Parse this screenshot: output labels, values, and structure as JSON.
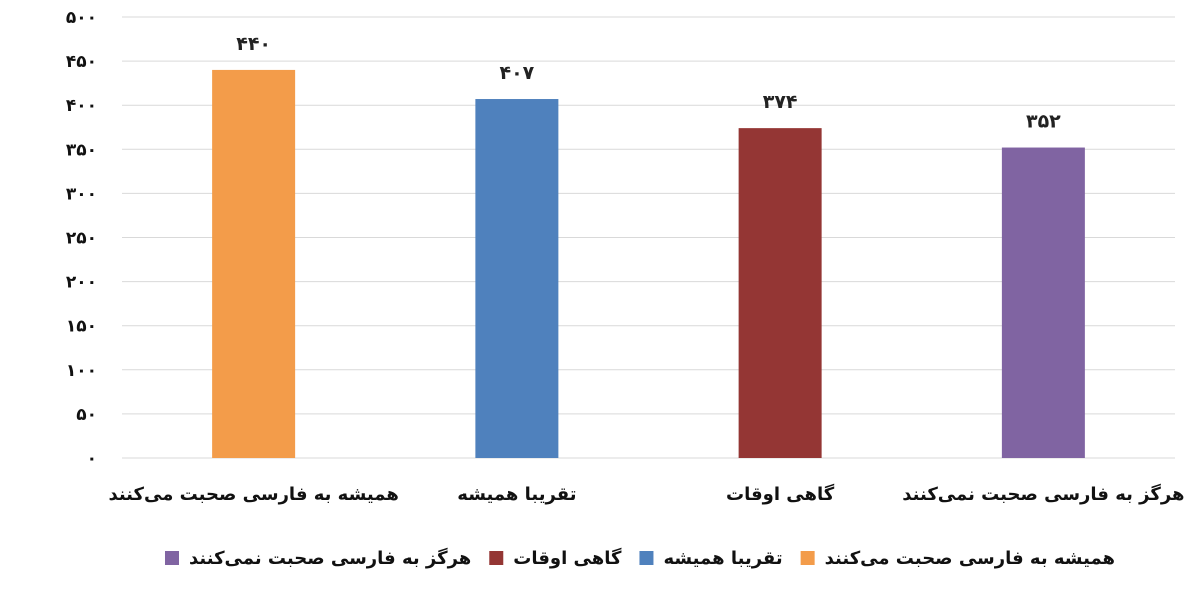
{
  "chart_data": {
    "type": "bar",
    "categories": [
      "همیشه به فارسی صحبت می‌کنند",
      "تقریبا همیشه",
      "گاهی اوقات",
      "هرگز به فارسی صحبت نمی‌کنند"
    ],
    "values": [
      440,
      407,
      374,
      352
    ],
    "data_labels": [
      "۴۴۰",
      "۴۰۷",
      "۳۷۴",
      "۳۵۲"
    ],
    "colors": [
      "#F39C4A",
      "#4F81BD",
      "#943634",
      "#8064A2"
    ],
    "ylim": [
      0,
      500
    ],
    "yticks": [
      0,
      50,
      100,
      150,
      200,
      250,
      300,
      350,
      400,
      450,
      500
    ],
    "ytick_labels": [
      "۰",
      "۵۰",
      "۱۰۰",
      "۱۵۰",
      "۲۰۰",
      "۲۵۰",
      "۳۰۰",
      "۳۵۰",
      "۴۰۰",
      "۴۵۰",
      "۵۰۰"
    ],
    "grid": true,
    "legend_position": "bottom",
    "legend": [
      "هرگز به فارسی صحبت نمی‌کنند",
      "گاهی اوقات",
      "تقریبا همیشه",
      "همیشه به فارسی صحبت می‌کنند"
    ],
    "legend_colors": [
      "#8064A2",
      "#943634",
      "#4F81BD",
      "#F39C4A"
    ]
  }
}
